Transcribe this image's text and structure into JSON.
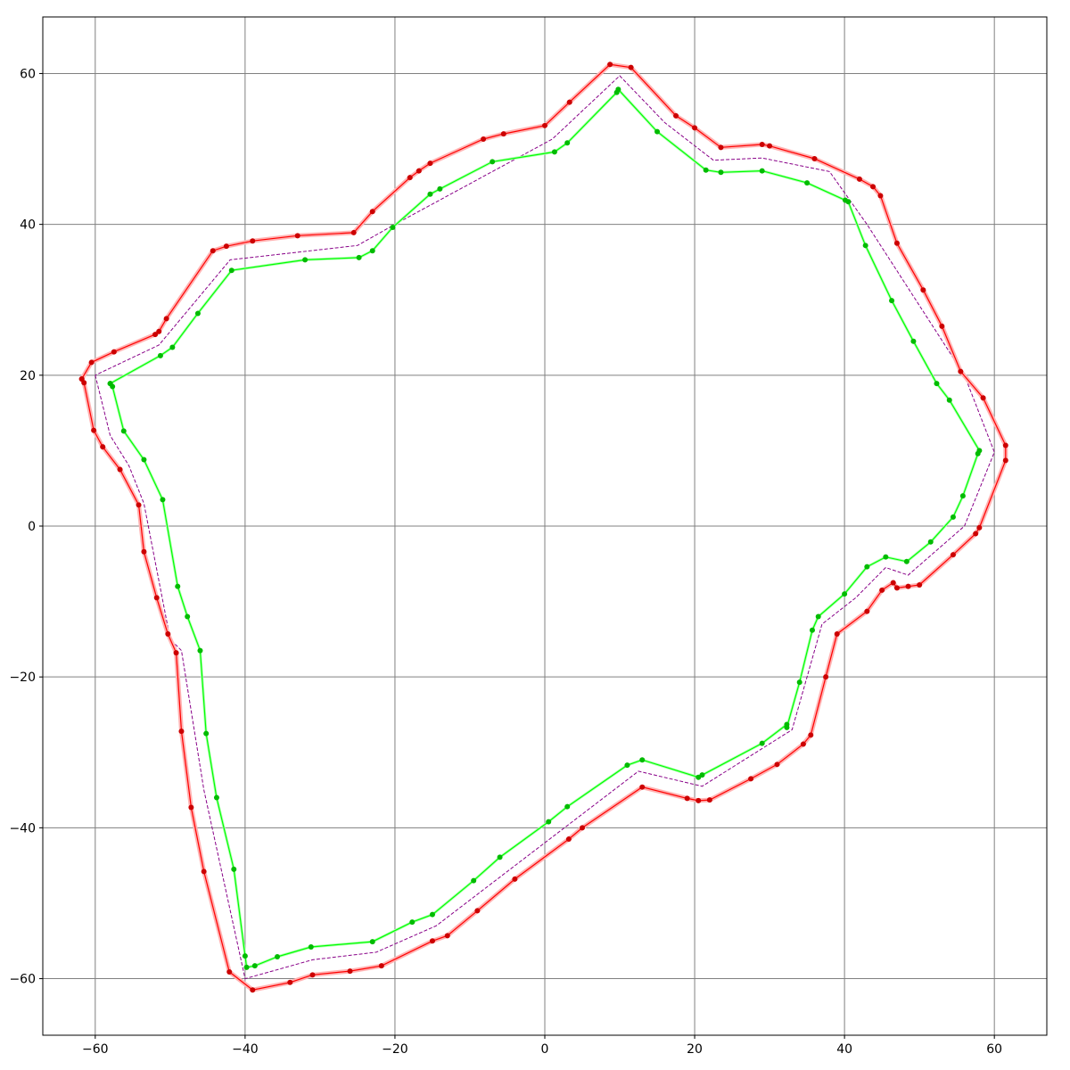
{
  "chart_data": {
    "type": "line",
    "title": "",
    "xlabel": "",
    "ylabel": "",
    "xlim": [
      -67,
      67
    ],
    "ylim": [
      -67.5,
      67.5
    ],
    "grid": true,
    "legend": "none",
    "xticks": [
      -60,
      -40,
      -20,
      0,
      20,
      40,
      60
    ],
    "yticks": [
      -60,
      -40,
      -20,
      0,
      20,
      40,
      60
    ],
    "xtick_labels": [
      "−60",
      "−40",
      "−20",
      "0",
      "20",
      "40",
      "60"
    ],
    "ytick_labels": [
      "−60",
      "−40",
      "−20",
      "0",
      "20",
      "40",
      "60"
    ],
    "colors": {
      "outer": "#ff0000",
      "outer_points": "#cc0000",
      "outer_band": "#ffb3b3",
      "inner": "#00ff00",
      "inner_points": "#00bb00",
      "center": "#880088",
      "grid": "#808080"
    },
    "series": [
      {
        "role": "center",
        "style": "dashed",
        "points": [
          [
            -60,
            20
          ],
          [
            -58,
            12
          ],
          [
            -55.5,
            8
          ],
          [
            -53.5,
            3
          ],
          [
            -50,
            -15
          ],
          [
            -48.5,
            -16.5
          ],
          [
            -45.5,
            -35
          ],
          [
            -40,
            -60
          ],
          [
            -31,
            -57.5
          ],
          [
            -22.5,
            -56.5
          ],
          [
            -14.5,
            -53
          ],
          [
            12.5,
            -32.5
          ],
          [
            21,
            -34.5
          ],
          [
            33,
            -27
          ],
          [
            37,
            -13
          ],
          [
            41.5,
            -9.5
          ],
          [
            45.5,
            -5.5
          ],
          [
            48.5,
            -6.5
          ],
          [
            56,
            0
          ],
          [
            60,
            9.8
          ],
          [
            56,
            20
          ],
          [
            43,
            40
          ],
          [
            38,
            47
          ],
          [
            29,
            48.8
          ],
          [
            22.5,
            48.5
          ],
          [
            16,
            53.5
          ],
          [
            10,
            59.7
          ],
          [
            1,
            51.3
          ],
          [
            -20,
            40
          ],
          [
            -25,
            37.2
          ],
          [
            -42,
            35.3
          ],
          [
            -51.5,
            24
          ],
          [
            -60,
            20
          ]
        ]
      },
      {
        "role": "outer",
        "points": [
          [
            -61.8,
            19.5
          ],
          [
            -61.5,
            19
          ],
          [
            -60.2,
            12.7
          ],
          [
            -59,
            10.5
          ],
          [
            -56.7,
            7.5
          ],
          [
            -54.2,
            2.8
          ],
          [
            -53.5,
            -3.4
          ],
          [
            -51.8,
            -9.5
          ],
          [
            -50.3,
            -14.3
          ],
          [
            -49.2,
            -16.8
          ],
          [
            -48.5,
            -27.2
          ],
          [
            -47.2,
            -37.3
          ],
          [
            -45.5,
            -45.8
          ],
          [
            -42.1,
            -59.1
          ],
          [
            -39,
            -61.5
          ],
          [
            -34,
            -60.5
          ],
          [
            -31,
            -59.5
          ],
          [
            -26,
            -59
          ],
          [
            -21.8,
            -58.3
          ],
          [
            -15,
            -55
          ],
          [
            -13,
            -54.3
          ],
          [
            -9,
            -51
          ],
          [
            -4,
            -46.8
          ],
          [
            3.2,
            -41.5
          ],
          [
            5,
            -40
          ],
          [
            13,
            -34.6
          ],
          [
            19,
            -36.1
          ],
          [
            20.5,
            -36.4
          ],
          [
            22,
            -36.3
          ],
          [
            27.5,
            -33.5
          ],
          [
            31,
            -31.6
          ],
          [
            34.5,
            -28.9
          ],
          [
            35.5,
            -27.7
          ],
          [
            37.5,
            -20
          ],
          [
            39,
            -14.3
          ],
          [
            43,
            -11.3
          ],
          [
            45,
            -8.5
          ],
          [
            46.5,
            -7.5
          ],
          [
            47,
            -8.2
          ],
          [
            48.5,
            -8
          ],
          [
            50,
            -7.8
          ],
          [
            54.5,
            -3.8
          ],
          [
            57.5,
            -1
          ],
          [
            58,
            -0.2
          ],
          [
            61.5,
            8.7
          ],
          [
            61.5,
            10.7
          ],
          [
            58.5,
            17
          ],
          [
            55.5,
            20.5
          ],
          [
            53,
            26.5
          ],
          [
            50.5,
            31.3
          ],
          [
            47,
            37.5
          ],
          [
            44.8,
            43.8
          ],
          [
            43.8,
            45
          ],
          [
            42,
            46
          ],
          [
            36,
            48.7
          ],
          [
            30,
            50.4
          ],
          [
            29,
            50.6
          ],
          [
            23.5,
            50.2
          ],
          [
            20,
            52.8
          ],
          [
            17.5,
            54.4
          ],
          [
            11.5,
            60.8
          ],
          [
            8.7,
            61.2
          ],
          [
            3.3,
            56.2
          ],
          [
            0,
            53.1
          ],
          [
            -5.5,
            52
          ],
          [
            -8.2,
            51.3
          ],
          [
            -15.3,
            48.1
          ],
          [
            -16.8,
            47.1
          ],
          [
            -18,
            46.2
          ],
          [
            -23,
            41.7
          ],
          [
            -25.5,
            38.9
          ],
          [
            -33,
            38.5
          ],
          [
            -39,
            37.8
          ],
          [
            -42.5,
            37.1
          ],
          [
            -44.3,
            36.5
          ],
          [
            -50.5,
            27.5
          ],
          [
            -51.5,
            25.8
          ],
          [
            -52,
            25.4
          ],
          [
            -57.5,
            23.1
          ],
          [
            -60.5,
            21.7
          ],
          [
            -61.8,
            19.5
          ]
        ]
      },
      {
        "role": "inner",
        "points": [
          [
            -58,
            18.9
          ],
          [
            -57.7,
            18.5
          ],
          [
            -56.2,
            12.6
          ],
          [
            -53.5,
            8.8
          ],
          [
            -51,
            3.5
          ],
          [
            -49,
            -8
          ],
          [
            -47.7,
            -12
          ],
          [
            -46,
            -16.5
          ],
          [
            -45.2,
            -27.5
          ],
          [
            -43.8,
            -36
          ],
          [
            -41.5,
            -45.5
          ],
          [
            -40,
            -57
          ],
          [
            -39.8,
            -58.5
          ],
          [
            -38.7,
            -58.3
          ],
          [
            -35.7,
            -57.1
          ],
          [
            -31.2,
            -55.8
          ],
          [
            -23,
            -55.1
          ],
          [
            -17.7,
            -52.5
          ],
          [
            -15,
            -51.5
          ],
          [
            -9.5,
            -47
          ],
          [
            -6,
            -43.9
          ],
          [
            0.5,
            -39.2
          ],
          [
            3,
            -37.2
          ],
          [
            11,
            -31.7
          ],
          [
            13,
            -31
          ],
          [
            20.5,
            -33.3
          ],
          [
            21,
            -33
          ],
          [
            29,
            -28.8
          ],
          [
            32.3,
            -26.3
          ],
          [
            32.3,
            -26.7
          ],
          [
            34,
            -20.7
          ],
          [
            35.7,
            -13.8
          ],
          [
            36.5,
            -12
          ],
          [
            40,
            -9
          ],
          [
            43,
            -5.4
          ],
          [
            45.5,
            -4.1
          ],
          [
            48.3,
            -4.7
          ],
          [
            51.5,
            -2.1
          ],
          [
            54.5,
            1.2
          ],
          [
            55.8,
            4
          ],
          [
            57.8,
            9.6
          ],
          [
            58,
            10
          ],
          [
            54,
            16.7
          ],
          [
            52.3,
            18.9
          ],
          [
            49.2,
            24.5
          ],
          [
            46.3,
            29.9
          ],
          [
            42.8,
            37.2
          ],
          [
            40.5,
            43
          ],
          [
            40.1,
            43.2
          ],
          [
            35,
            45.5
          ],
          [
            29,
            47.1
          ],
          [
            23.5,
            46.9
          ],
          [
            21.5,
            47.2
          ],
          [
            15,
            52.3
          ],
          [
            9.8,
            57.9
          ],
          [
            9.6,
            57.5
          ],
          [
            3,
            50.8
          ],
          [
            1.3,
            49.6
          ],
          [
            -7,
            48.3
          ],
          [
            -14,
            44.7
          ],
          [
            -15.3,
            44
          ],
          [
            -20.3,
            39.6
          ],
          [
            -23,
            36.5
          ],
          [
            -24.8,
            35.6
          ],
          [
            -32,
            35.3
          ],
          [
            -41.8,
            33.9
          ],
          [
            -46.3,
            28.2
          ],
          [
            -49.7,
            23.7
          ],
          [
            -51.3,
            22.6
          ],
          [
            -58,
            18.9
          ]
        ]
      }
    ]
  }
}
